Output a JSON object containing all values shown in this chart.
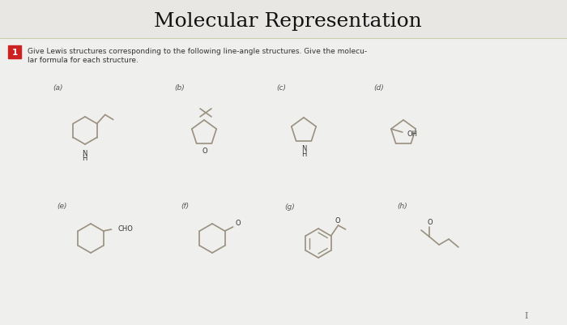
{
  "title": "Molecular Representation",
  "title_fontsize": 18,
  "question_text_line1": "Give Lewis structures corresponding to the following line-angle structures. Give the molecu-",
  "question_text_line2": "lar formula for each structure.",
  "bg_color": "#efefed",
  "header_bg": "#e8e7e4",
  "line_color": "#aaa090",
  "text_color": "#333333",
  "label_color": "#555555",
  "red_box_color": "#cc2222",
  "struct_color": "#999080",
  "lw": 1.2
}
